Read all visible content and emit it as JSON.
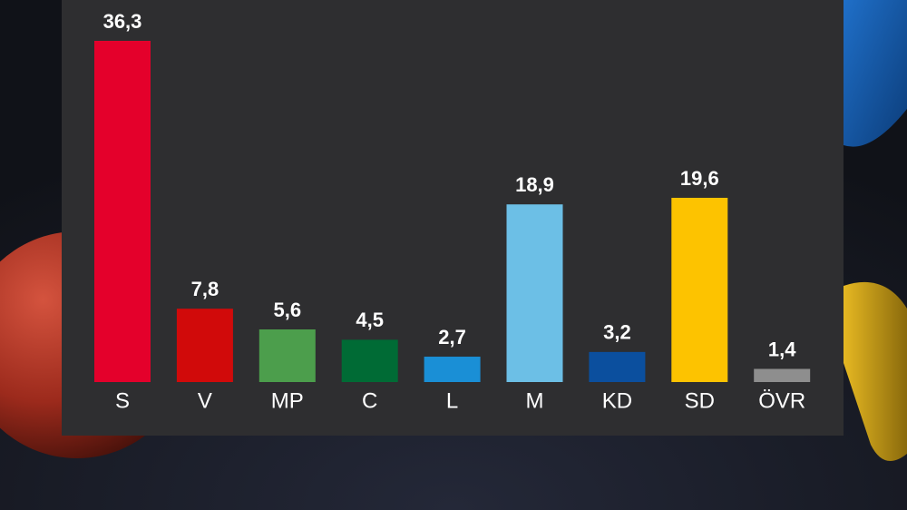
{
  "chart_data": {
    "type": "bar",
    "categories": [
      "S",
      "V",
      "MP",
      "C",
      "L",
      "M",
      "KD",
      "SD",
      "ÖVR"
    ],
    "values": [
      36.3,
      7.8,
      5.6,
      4.5,
      2.7,
      18.9,
      3.2,
      19.6,
      1.4
    ],
    "value_labels": [
      "36,3",
      "7,8",
      "5,6",
      "4,5",
      "2,7",
      "18,9",
      "3,2",
      "19,6",
      "1,4"
    ],
    "colors": [
      "#e4002b",
      "#d10a0a",
      "#4c9e4c",
      "#006b35",
      "#1a8fd6",
      "#6cbfe6",
      "#0b4f9e",
      "#fdc300",
      "#8e8e8e"
    ]
  }
}
